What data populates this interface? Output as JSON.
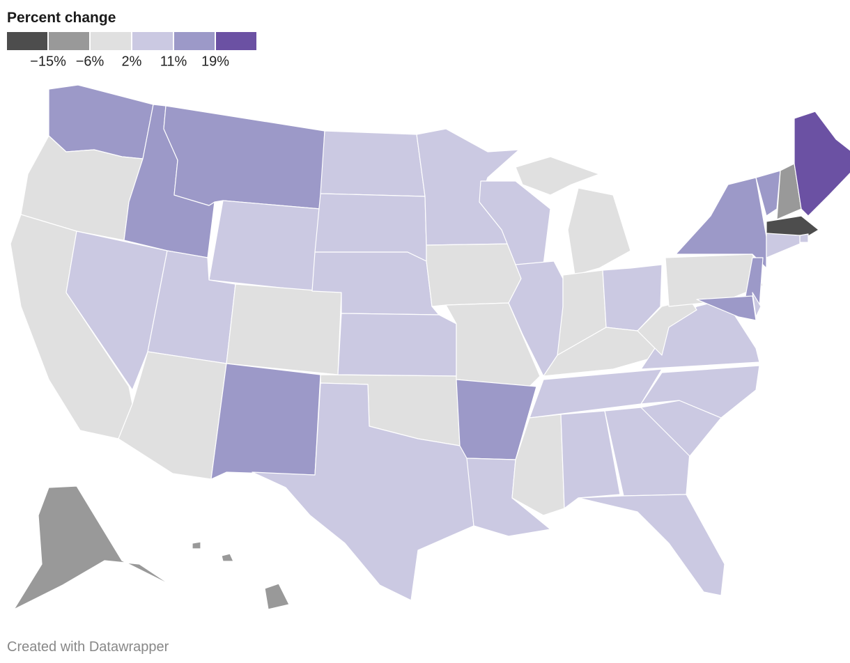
{
  "legend": {
    "title": "Percent change",
    "colors": [
      "#4d4d4d",
      "#999999",
      "#e0e0e0",
      "#cbc9e2",
      "#9c99c8",
      "#6b51a3"
    ],
    "ticks": [
      {
        "value": -15,
        "label": "−15%"
      },
      {
        "value": -6,
        "label": "−6%"
      },
      {
        "value": 2,
        "label": "2%"
      },
      {
        "value": 11,
        "label": "11%"
      },
      {
        "value": 19,
        "label": "19%"
      }
    ]
  },
  "footer": "Created with Datawrapper"
}
